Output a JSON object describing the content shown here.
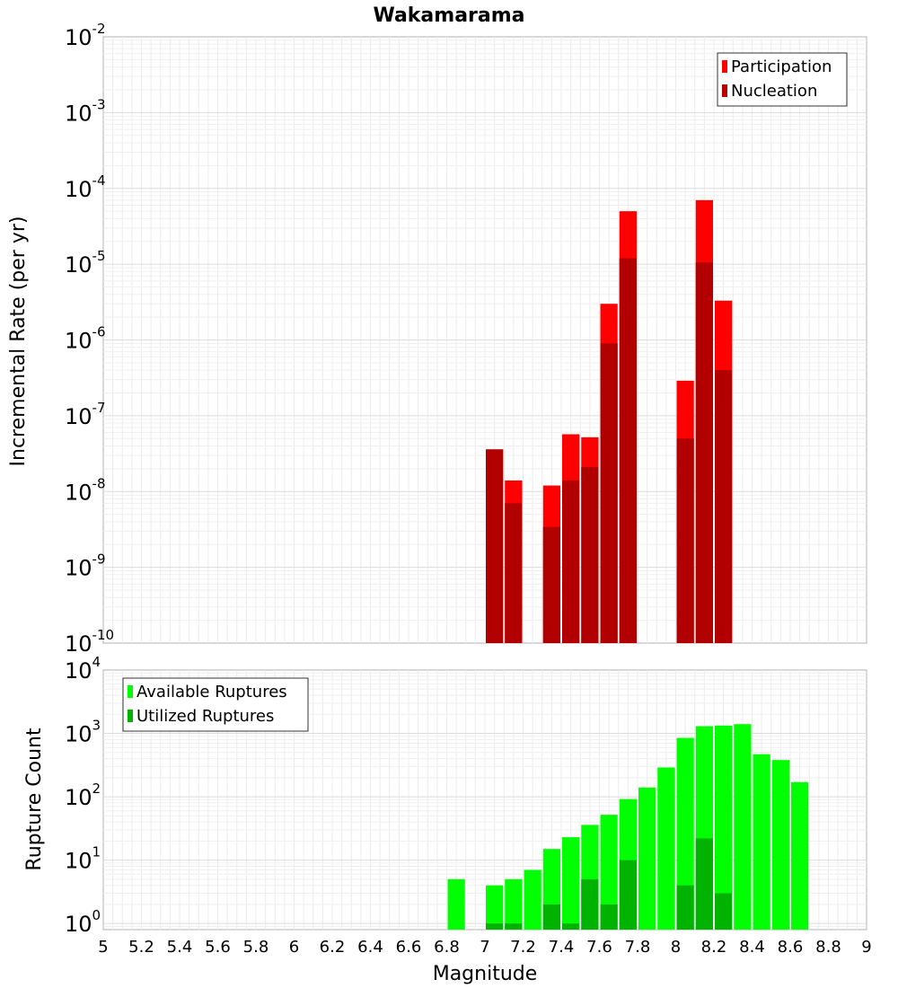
{
  "title": "Wakamarama",
  "xlabel": "Magnitude",
  "x_ticks": [
    "5",
    "5.2",
    "5.4",
    "5.6",
    "5.8",
    "6",
    "6.2",
    "6.4",
    "6.6",
    "6.8",
    "7",
    "7.2",
    "7.4",
    "7.6",
    "7.8",
    "8",
    "8.2",
    "8.4",
    "8.6",
    "8.8",
    "9"
  ],
  "chart_data": [
    {
      "type": "bar",
      "ylabel": "Incremental Rate (per yr)",
      "yscale": "log",
      "ylim": [
        1e-10,
        0.01
      ],
      "xlim": [
        5,
        9
      ],
      "bin_width": 0.1,
      "grid": true,
      "legend_position": "top-right",
      "y_ticks": [
        {
          "base": "10",
          "exp": "-10",
          "value": 1e-10
        },
        {
          "base": "10",
          "exp": "-9",
          "value": 1e-09
        },
        {
          "base": "10",
          "exp": "-8",
          "value": 1e-08
        },
        {
          "base": "10",
          "exp": "-7",
          "value": 1e-07
        },
        {
          "base": "10",
          "exp": "-6",
          "value": 1e-06
        },
        {
          "base": "10",
          "exp": "-5",
          "value": 1e-05
        },
        {
          "base": "10",
          "exp": "-4",
          "value": 0.0001
        },
        {
          "base": "10",
          "exp": "-3",
          "value": 0.001
        },
        {
          "base": "10",
          "exp": "-2",
          "value": 0.01
        }
      ],
      "series": [
        {
          "name": "Participation",
          "color": "#ff0000",
          "x": [
            7.05,
            7.15,
            7.35,
            7.45,
            7.55,
            7.65,
            7.75,
            8.05,
            8.15,
            8.25
          ],
          "values": [
            3.6e-08,
            1.4e-08,
            1.2e-08,
            5.7e-08,
            5.2e-08,
            3e-06,
            5e-05,
            2.9e-07,
            7e-05,
            3.3e-06
          ]
        },
        {
          "name": "Nucleation",
          "color": "#b20000",
          "x": [
            7.05,
            7.15,
            7.35,
            7.45,
            7.55,
            7.65,
            7.75,
            8.05,
            8.15,
            8.25
          ],
          "values": [
            3.6e-08,
            7e-09,
            3.4e-09,
            1.4e-08,
            2.1e-08,
            9e-07,
            1.2e-05,
            5e-08,
            1.05e-05,
            4e-07
          ]
        }
      ]
    },
    {
      "type": "bar",
      "ylabel": "Rupture Count",
      "yscale": "log",
      "ylim": [
        0.8,
        10000
      ],
      "xlim": [
        5,
        9
      ],
      "bin_width": 0.1,
      "grid": true,
      "legend_position": "top-left",
      "y_ticks": [
        {
          "base": "10",
          "exp": "0",
          "value": 1
        },
        {
          "base": "10",
          "exp": "1",
          "value": 10
        },
        {
          "base": "10",
          "exp": "2",
          "value": 100
        },
        {
          "base": "10",
          "exp": "3",
          "value": 1000
        },
        {
          "base": "10",
          "exp": "4",
          "value": 10000
        }
      ],
      "series": [
        {
          "name": "Available Ruptures",
          "color": "#00ff00",
          "x": [
            6.85,
            7.05,
            7.15,
            7.25,
            7.35,
            7.45,
            7.55,
            7.65,
            7.75,
            7.85,
            7.95,
            8.05,
            8.15,
            8.25,
            8.35,
            8.45,
            8.55,
            8.65
          ],
          "values": [
            5,
            4,
            5,
            7,
            15,
            23,
            36,
            52,
            92,
            140,
            290,
            850,
            1300,
            1330,
            1400,
            470,
            380,
            170
          ]
        },
        {
          "name": "Utilized Ruptures",
          "color": "#00b300",
          "x": [
            7.05,
            7.15,
            7.35,
            7.45,
            7.55,
            7.65,
            7.75,
            8.05,
            8.15,
            8.25
          ],
          "values": [
            1,
            1,
            2,
            1,
            5,
            2,
            10,
            4,
            22,
            3
          ]
        }
      ]
    }
  ]
}
